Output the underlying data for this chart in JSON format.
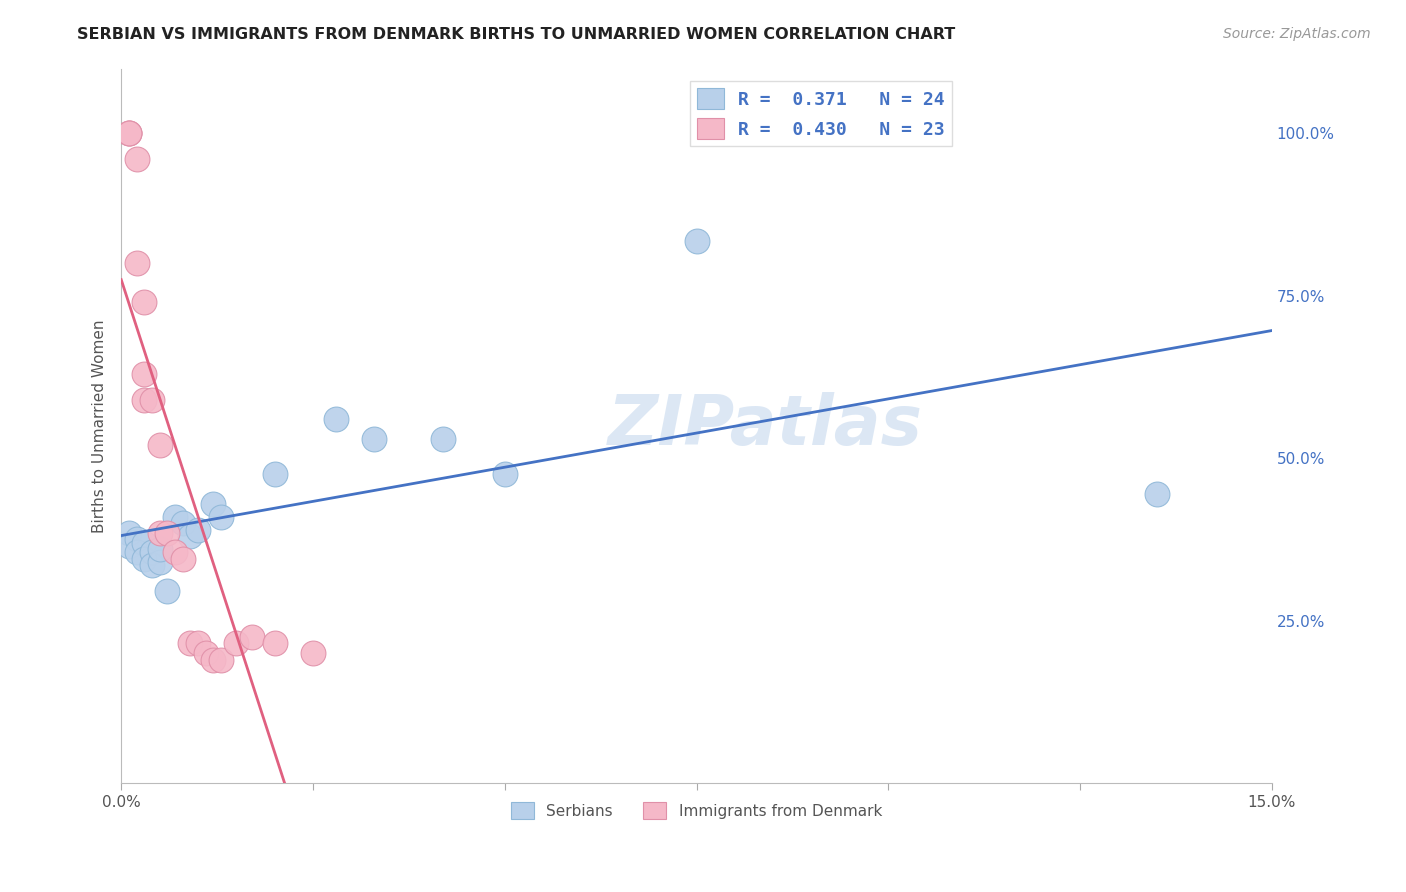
{
  "title": "SERBIAN VS IMMIGRANTS FROM DENMARK BIRTHS TO UNMARRIED WOMEN CORRELATION CHART",
  "source": "Source: ZipAtlas.com",
  "ylabel": "Births to Unmarried Women",
  "watermark": "ZIPatlas",
  "legend_label1": "R =  0.371   N = 24",
  "legend_label2": "R =  0.430   N = 23",
  "legend_series1": "Serbians",
  "legend_series2": "Immigrants from Denmark",
  "blue_color": "#b8d0ea",
  "pink_color": "#f5b8c8",
  "blue_line_color": "#4472c4",
  "pink_line_color": "#e06080",
  "legend_text_color": "#4472c4",
  "title_color": "#222222",
  "serbians_x": [
    0.001,
    0.001,
    0.002,
    0.002,
    0.003,
    0.003,
    0.004,
    0.004,
    0.005,
    0.005,
    0.006,
    0.007,
    0.008,
    0.009,
    0.01,
    0.012,
    0.013,
    0.02,
    0.028,
    0.033,
    0.042,
    0.05,
    0.075,
    0.135
  ],
  "serbians_y": [
    0.385,
    0.365,
    0.375,
    0.355,
    0.37,
    0.345,
    0.355,
    0.335,
    0.34,
    0.36,
    0.295,
    0.41,
    0.4,
    0.38,
    0.39,
    0.43,
    0.41,
    0.475,
    0.56,
    0.53,
    0.53,
    0.475,
    0.835,
    0.445
  ],
  "denmark_x": [
    0.001,
    0.001,
    0.001,
    0.002,
    0.002,
    0.003,
    0.003,
    0.003,
    0.004,
    0.005,
    0.005,
    0.006,
    0.007,
    0.008,
    0.009,
    0.01,
    0.011,
    0.012,
    0.013,
    0.015,
    0.017,
    0.02,
    0.025
  ],
  "denmark_y": [
    1.0,
    1.0,
    1.0,
    0.96,
    0.8,
    0.74,
    0.63,
    0.59,
    0.59,
    0.52,
    0.385,
    0.385,
    0.355,
    0.345,
    0.215,
    0.215,
    0.2,
    0.19,
    0.19,
    0.215,
    0.225,
    0.215,
    0.2
  ],
  "xlim": [
    0.0,
    0.15
  ],
  "ylim": [
    0.0,
    1.1
  ],
  "ytick_vals": [
    0.25,
    0.5,
    0.75,
    1.0
  ],
  "ytick_labels": [
    "25.0%",
    "50.0%",
    "75.0%",
    "100.0%"
  ],
  "xtick_vals": [
    0.0,
    0.025,
    0.05,
    0.075,
    0.1,
    0.125,
    0.15
  ],
  "xtick_labels": [
    "0.0%",
    "",
    "",
    "",
    "",
    "",
    "15.0%"
  ]
}
